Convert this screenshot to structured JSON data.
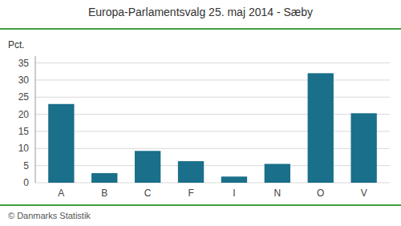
{
  "chart_data": {
    "type": "bar",
    "title": "Europa-Parlamentsvalg 25. maj 2014 - Sæby",
    "categories": [
      "A",
      "B",
      "C",
      "F",
      "I",
      "N",
      "O",
      "V"
    ],
    "values": [
      23.0,
      2.8,
      9.3,
      6.3,
      1.8,
      5.5,
      32.0,
      20.3
    ],
    "color": "#1a6f8a",
    "ylabel": "Pct.",
    "ylim": [
      0,
      37
    ],
    "yticks": [
      0,
      5,
      10,
      15,
      20,
      25,
      30,
      35
    ],
    "grid": true,
    "annotations": [
      "© Danmarks Statistik"
    ]
  }
}
